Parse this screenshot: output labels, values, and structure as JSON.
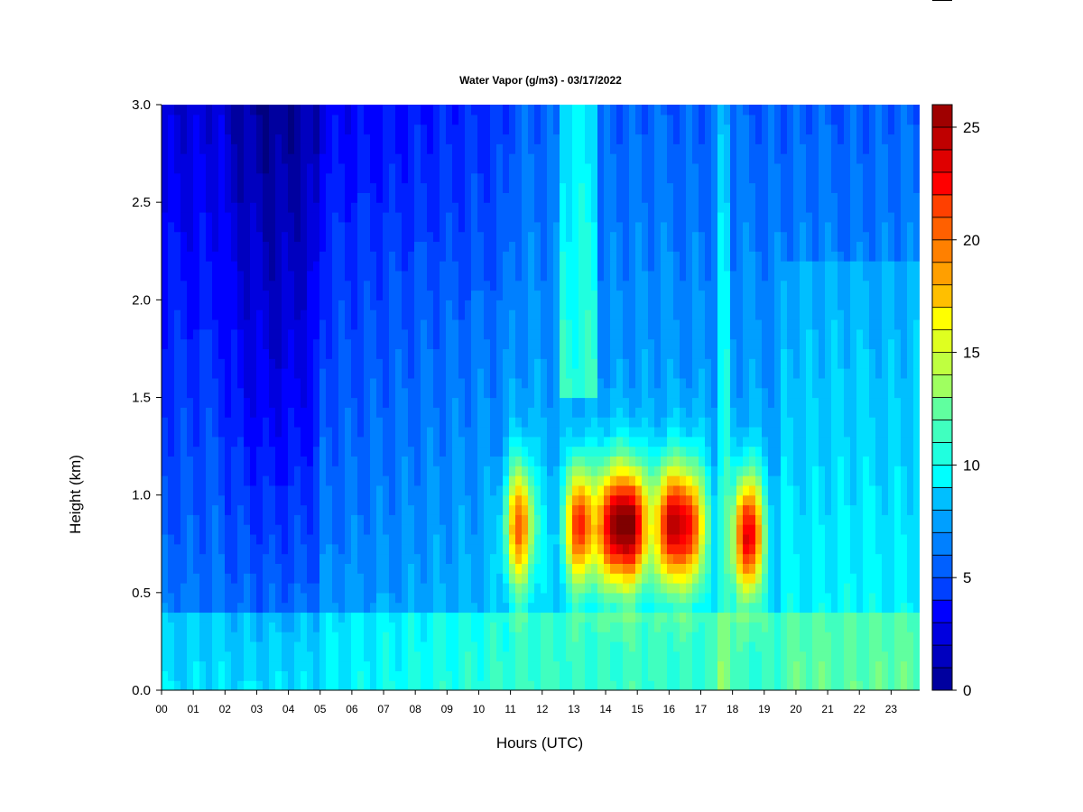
{
  "chart_data": {
    "type": "heatmap",
    "title": "Water Vapor (g/m3) - 03/17/2022",
    "xlabel": "Hours (UTC)",
    "ylabel": "Height (km)",
    "xlim": [
      0,
      24
    ],
    "ylim": [
      0,
      3.0
    ],
    "x_ticks": [
      "00",
      "01",
      "02",
      "03",
      "04",
      "05",
      "06",
      "07",
      "08",
      "09",
      "10",
      "11",
      "12",
      "13",
      "14",
      "15",
      "16",
      "17",
      "18",
      "19",
      "20",
      "21",
      "22",
      "23"
    ],
    "y_ticks": [
      "0.0",
      "0.5",
      "1.0",
      "1.5",
      "2.0",
      "2.5",
      "3.0"
    ],
    "colorbar": {
      "min": 0,
      "max": 26,
      "levels": 26,
      "tick_labels": [
        "0",
        "5",
        "10",
        "15",
        "20",
        "25"
      ],
      "colors": [
        "#00007f",
        "#00009f",
        "#0000bf",
        "#0000df",
        "#0000ff",
        "#0020ff",
        "#0040ff",
        "#0060ff",
        "#0080ff",
        "#009fff",
        "#00bfff",
        "#00dfff",
        "#00ffff",
        "#20ffdf",
        "#40ffbf",
        "#60ff9f",
        "#80ff80",
        "#9fff60",
        "#bfff40",
        "#dfff20",
        "#ffff00",
        "#ffdf00",
        "#ffbf00",
        "#ff9f00",
        "#ff8000",
        "#ff6000",
        "#ff4000",
        "#ff2000",
        "#ff0000",
        "#df0000",
        "#bf0000",
        "#9f0000",
        "#7f0000"
      ]
    },
    "features": [
      {
        "hour": 11.3,
        "height_km": 0.85,
        "value": 21
      },
      {
        "hour": 13.2,
        "height_km": 0.85,
        "value": 23
      },
      {
        "hour": 14.2,
        "height_km": 0.85,
        "value": 25
      },
      {
        "hour": 14.9,
        "height_km": 0.85,
        "value": 25
      },
      {
        "hour": 16.0,
        "height_km": 0.85,
        "value": 24
      },
      {
        "hour": 16.7,
        "height_km": 0.85,
        "value": 22
      },
      {
        "hour": 18.5,
        "height_km": 0.8,
        "value": 25
      }
    ]
  }
}
